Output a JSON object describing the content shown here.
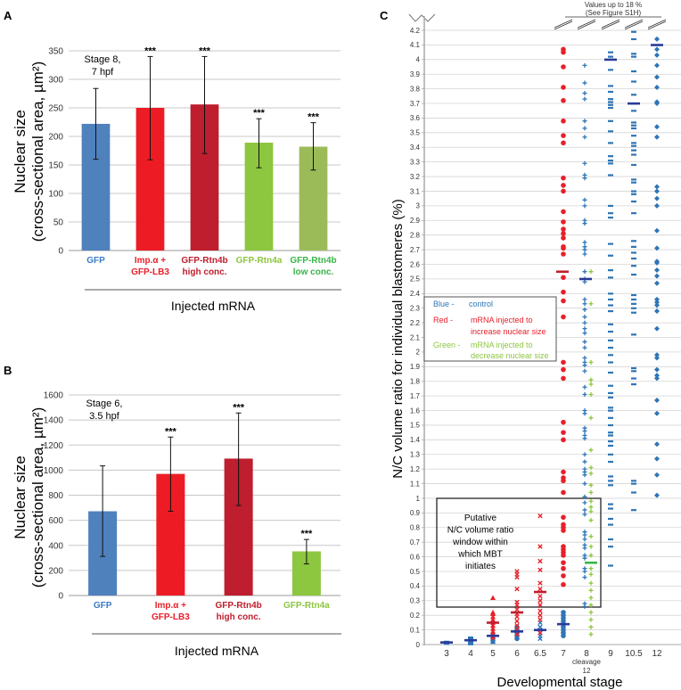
{
  "chart_data": [
    {
      "panel": "A",
      "type": "bar",
      "title": "",
      "annotation": [
        "Stage 8,",
        "7 hpf"
      ],
      "ylabel": [
        "Nuclear size",
        "(cross-sectional area, µm²)"
      ],
      "xlabel": "Injected mRNA",
      "ylim": [
        0,
        350
      ],
      "yticks": [
        0,
        50,
        100,
        150,
        200,
        250,
        300,
        350
      ],
      "grid": true,
      "categories": [
        {
          "label": [
            "GFP"
          ],
          "color": "#3b7cc4"
        },
        {
          "label": [
            "Imp.α +",
            "GFP-LB3"
          ],
          "color": "#e8202a"
        },
        {
          "label": [
            "GFP-Rtn4b",
            "high conc."
          ],
          "color": "#be1e2d"
        },
        {
          "label": [
            "GFP-Rtn4a"
          ],
          "color": "#8dc63f"
        },
        {
          "label": [
            "GFP-Rtn4b",
            "low conc."
          ],
          "color": "#39b54a"
        }
      ],
      "bar_colors": [
        "#4f81bd",
        "#ed1c24",
        "#be1e2d",
        "#8dc63f",
        "#9bbb59"
      ],
      "values": [
        222,
        250,
        256,
        189,
        182
      ],
      "error_low": [
        160,
        159,
        170,
        145,
        141
      ],
      "error_high": [
        284,
        340,
        340,
        231,
        224
      ],
      "significance": [
        "",
        "***",
        "***",
        "***",
        "***"
      ]
    },
    {
      "panel": "B",
      "type": "bar",
      "annotation": [
        "Stage 6,",
        "3.5 hpf"
      ],
      "ylabel": [
        "Nuclear size",
        "(cross-sectional area, µm²)"
      ],
      "xlabel": "Injected mRNA",
      "ylim": [
        0,
        1600
      ],
      "yticks": [
        0,
        200,
        400,
        600,
        800,
        1000,
        1200,
        1400,
        1600
      ],
      "grid": true,
      "categories": [
        {
          "label": [
            "GFP"
          ],
          "color": "#3b7cc4"
        },
        {
          "label": [
            "Imp.α +",
            "GFP-LB3"
          ],
          "color": "#e8202a"
        },
        {
          "label": [
            "GFP-Rtn4b",
            "high conc."
          ],
          "color": "#be1e2d"
        },
        {
          "label": [
            "GFP-Rtn4a"
          ],
          "color": "#8dc63f"
        }
      ],
      "bar_colors": [
        "#4f81bd",
        "#ed1c24",
        "#be1e2d",
        "#8dc63f"
      ],
      "values": [
        672,
        970,
        1092,
        352
      ],
      "error_low": [
        312,
        672,
        718,
        252
      ],
      "error_high": [
        1034,
        1264,
        1456,
        447
      ],
      "significance": [
        "",
        "***",
        "***",
        "***"
      ]
    },
    {
      "panel": "C",
      "type": "scatter",
      "ylabel": "N/C volume ratio for individual blastomeres (%)",
      "xlabel": "Developmental stage",
      "ylim": [
        0,
        4.2
      ],
      "yticks": [
        0,
        0.1,
        0.2,
        0.3,
        0.4,
        0.5,
        0.6,
        0.7,
        0.8,
        0.9,
        1,
        1.1,
        1.2,
        1.3,
        1.4,
        1.5,
        1.6,
        1.7,
        1.8,
        1.9,
        2,
        2.1,
        2.2,
        2.3,
        2.4,
        2.5,
        2.6,
        2.7,
        2.8,
        2.9,
        3,
        3.1,
        3.2,
        3.3,
        3.4,
        3.5,
        3.6,
        3.7,
        3.8,
        3.9,
        4,
        4.1,
        4.2
      ],
      "categories": [
        "3",
        "4",
        "5",
        "6",
        "6.5",
        "7",
        "8",
        "9",
        "10.5",
        "12"
      ],
      "x_sublabel": [
        "cleavage",
        "12"
      ],
      "top_note": [
        "Values up to 18 %",
        "(See Figure S1H)"
      ],
      "grid": true,
      "legend": [
        {
          "key": "Blue -",
          "text": [
            "control"
          ],
          "color": "#2e75b6"
        },
        {
          "key": "Red -",
          "text": [
            "mRNA injected to",
            "increase nuclear size"
          ],
          "color": "#e8202a"
        },
        {
          "key": "Green -",
          "text": [
            "mRNA injected to",
            "decrease nuclear size"
          ],
          "color": "#8dc63f"
        }
      ],
      "box_annotation": {
        "text": [
          "Putative",
          "N/C volume ratio",
          "window within",
          "which MBT",
          "initiates"
        ],
        "y_range": [
          0.26,
          1.0
        ],
        "x_range": [
          "3",
          "8"
        ]
      },
      "colors": {
        "control": "#2e75b6",
        "increase": "#e8202a",
        "decrease": "#8dc63f",
        "median_control": "#2b3a98",
        "median_increase": "#be1e2d",
        "median_decrease": "#39b54a"
      },
      "series": [
        {
          "name": "control",
          "stage": "3",
          "marker": "dash",
          "values": [
            0.005,
            0.01,
            0.015,
            0.02
          ],
          "median": 0.015
        },
        {
          "name": "control",
          "stage": "4",
          "marker": "square",
          "values": [
            0.01,
            0.02,
            0.03,
            0.035,
            0.04
          ],
          "median": 0.03
        },
        {
          "name": "control",
          "stage": "5",
          "marker": "triangle",
          "values": [
            0.02,
            0.03,
            0.04,
            0.05,
            0.06,
            0.07,
            0.08
          ],
          "median": 0.06
        },
        {
          "name": "increase",
          "stage": "5",
          "marker": "triangle",
          "values": [
            0.05,
            0.07,
            0.09,
            0.11,
            0.13,
            0.15,
            0.17,
            0.19,
            0.21,
            0.22,
            0.32
          ],
          "median": 0.15
        },
        {
          "name": "control",
          "stage": "6",
          "marker": "dot",
          "values": [
            0.04,
            0.06,
            0.08,
            0.1,
            0.12
          ],
          "median": 0.09
        },
        {
          "name": "increase",
          "stage": "6",
          "marker": "x",
          "values": [
            0.07,
            0.1,
            0.13,
            0.16,
            0.19,
            0.21,
            0.24,
            0.27,
            0.29,
            0.38,
            0.46,
            0.48,
            0.5
          ],
          "median": 0.22
        },
        {
          "name": "control",
          "stage": "6.5",
          "marker": "x",
          "values": [
            0.04,
            0.06,
            0.08,
            0.1,
            0.12,
            0.15
          ],
          "median": 0.1
        },
        {
          "name": "increase",
          "stage": "6.5",
          "marker": "x",
          "values": [
            0.08,
            0.17,
            0.2,
            0.23,
            0.27,
            0.3,
            0.33,
            0.38,
            0.42,
            0.51,
            0.57,
            0.67,
            0.88
          ],
          "median": 0.36
        },
        {
          "name": "control",
          "stage": "7",
          "marker": "dot",
          "values": [
            0.06,
            0.08,
            0.1,
            0.12,
            0.14,
            0.16,
            0.18,
            0.2,
            0.22
          ],
          "median": 0.14
        },
        {
          "name": "increase",
          "stage": "7",
          "marker": "dot",
          "values": [
            0.41,
            0.47,
            0.52,
            0.56,
            0.61,
            0.63,
            0.65,
            0.67,
            0.78,
            0.8,
            0.82,
            0.87,
            1.04,
            1.12,
            1.14,
            1.18,
            1.4,
            1.45,
            1.52,
            1.82,
            1.88,
            1.93,
            2.24,
            2.35,
            2.41,
            2.51,
            2.67,
            2.71,
            2.72,
            2.78,
            2.81,
            2.84,
            2.89,
            2.96,
            3.1,
            3.14,
            3.19,
            3.43,
            3.48,
            3.58,
            3.72,
            3.81,
            3.95,
            4.05,
            4.07
          ],
          "median": 2.55
        },
        {
          "name": "control",
          "stage": "8",
          "marker": "plus",
          "values": [
            0.26,
            0.28,
            0.46,
            0.5,
            0.52,
            0.59,
            0.61,
            0.66,
            0.68,
            0.72,
            0.75,
            0.77,
            0.89,
            0.92,
            0.97,
            1.01,
            1.1,
            1.16,
            1.18,
            1.2,
            1.25,
            1.3,
            1.41,
            1.43,
            1.46,
            1.48,
            1.58,
            1.6,
            1.71,
            1.76,
            1.87,
            1.91,
            1.93,
            1.96,
            2.03,
            2.07,
            2.13,
            2.16,
            2.2,
            2.24,
            2.29,
            2.33,
            2.36,
            2.48,
            2.5,
            2.55,
            2.67,
            2.7,
            2.72,
            2.75,
            2.88,
            2.9,
            3.0,
            3.04,
            3.19,
            3.21,
            3.29,
            3.47,
            3.53,
            3.58,
            3.73,
            3.77,
            3.84,
            3.96
          ],
          "median": 2.5
        },
        {
          "name": "decrease",
          "stage": "8",
          "marker": "plus",
          "values": [
            0.07,
            0.12,
            0.17,
            0.22,
            0.27,
            0.32,
            0.37,
            0.42,
            0.48,
            0.52,
            0.61,
            0.67,
            0.74,
            0.85,
            0.91,
            0.94,
            0.98,
            1.04,
            1.09,
            1.17,
            1.21,
            1.33,
            1.55,
            1.71,
            1.78,
            1.81,
            1.93,
            2.33,
            2.55
          ],
          "median": 0.56
        },
        {
          "name": "control",
          "stage": "9",
          "marker": "dash",
          "values": [
            0.54,
            0.67,
            0.72,
            0.82,
            0.86,
            0.93,
            0.96,
            1.09,
            1.12,
            1.15,
            1.25,
            1.3,
            1.36,
            1.39,
            1.43,
            1.45,
            1.5,
            1.55,
            1.6,
            1.62,
            1.69,
            1.72,
            1.77,
            1.86,
            1.93,
            1.98,
            2.03,
            2.08,
            2.14,
            2.19,
            2.28,
            2.32,
            2.36,
            2.4,
            2.51,
            2.56,
            2.66,
            2.74,
            2.92,
            2.95,
            3.0,
            3.21,
            3.29,
            3.31,
            3.34,
            3.43,
            3.51,
            3.58,
            3.67,
            3.69,
            3.71,
            3.73,
            3.78,
            3.82,
            3.93,
            4.02,
            4.05
          ],
          "median": 4.0
        },
        {
          "name": "control",
          "stage": "10.5",
          "marker": "dash",
          "values": [
            0.92,
            1.04,
            1.1,
            1.12,
            1.78,
            1.82,
            1.87,
            1.89,
            2.12,
            2.27,
            2.3,
            2.33,
            2.36,
            2.39,
            2.53,
            2.59,
            2.64,
            2.68,
            2.72,
            2.76,
            2.95,
            3.03,
            3.08,
            3.1,
            3.16,
            3.18,
            3.28,
            3.35,
            3.38,
            3.41,
            3.43,
            3.48,
            3.53,
            3.55,
            3.57,
            3.65,
            3.7,
            3.76,
            3.85,
            3.92,
            4.02,
            4.04,
            4.14,
            4.19
          ],
          "median": 3.7
        },
        {
          "name": "control",
          "stage": "12",
          "marker": "diamond",
          "values": [
            1.02,
            1.16,
            1.27,
            1.37,
            1.58,
            1.67,
            1.82,
            1.84,
            1.88,
            1.96,
            1.98,
            2.16,
            2.28,
            2.32,
            2.34,
            2.36,
            2.47,
            2.52,
            2.56,
            2.61,
            2.62,
            2.71,
            2.83,
            3.0,
            3.05,
            3.1,
            3.13,
            3.47,
            3.54,
            3.7,
            3.71,
            3.81,
            3.88,
            3.96,
            4.03,
            4.07,
            4.14
          ],
          "median": 4.1
        }
      ]
    }
  ]
}
